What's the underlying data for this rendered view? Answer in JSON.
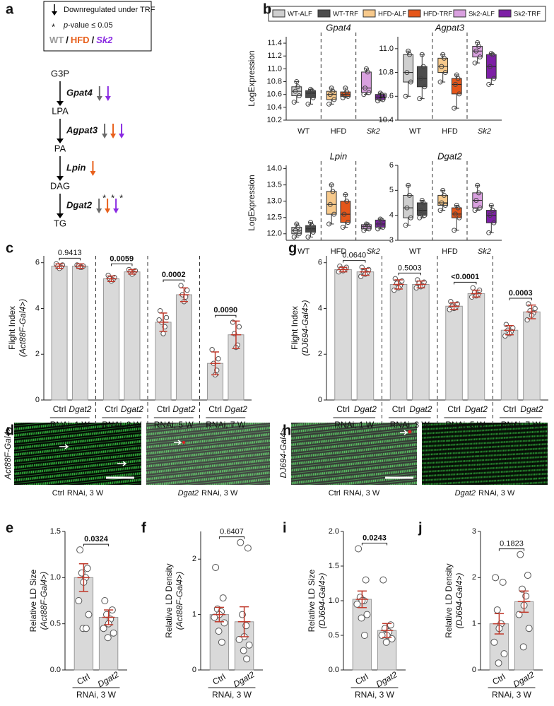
{
  "panel_labels": [
    "a",
    "b",
    "c",
    "d",
    "e",
    "f",
    "g",
    "h",
    "i",
    "j"
  ],
  "pathway": {
    "legend": {
      "arrow_text": "Downregulated under TRF",
      "star": "*",
      "p_symbol": "p",
      "p_text": "-value ≤ 0.05",
      "strains": [
        "WT",
        "/",
        "HFD",
        "/",
        "Sk2"
      ]
    },
    "steps": [
      {
        "from": "G3P",
        "enzyme": "Gpat4",
        "arrows": [
          {
            "color": "#6b6b6b"
          },
          {
            "color": "#8a2be2"
          }
        ]
      },
      {
        "from": "LPA",
        "enzyme": "Agpat3",
        "arrows": [
          {
            "color": "#6b6b6b"
          },
          {
            "color": "#e8601c"
          },
          {
            "color": "#8a2be2"
          }
        ]
      },
      {
        "from": "PA",
        "enzyme": "Lpin",
        "arrows": [
          {
            "color": "#e8601c"
          }
        ]
      },
      {
        "from": "DAG",
        "enzyme": "Dgat2",
        "arrows": [
          {
            "color": "#6b6b6b",
            "star": "*"
          },
          {
            "color": "#e8601c",
            "star": "*"
          },
          {
            "color": "#8a2be2",
            "star": "*"
          }
        ]
      }
    ],
    "end": "TG"
  },
  "box_legend": [
    {
      "name": "WT-ALF",
      "color": "#cfcfcf"
    },
    {
      "name": "WT-TRF",
      "color": "#4d4d4d"
    },
    {
      "name": "HFD-ALF",
      "color": "#f7c98b"
    },
    {
      "name": "HFD-TRF",
      "color": "#e5561a"
    },
    {
      "name": "Sk2-ALF",
      "color": "#d9a0df"
    },
    {
      "name": "Sk2-TRF",
      "color": "#7d1fa6"
    }
  ],
  "images": [
    {
      "side_label": "Act88F-Gal4>",
      "captions": [
        [
          "Ctrl",
          "RNAi, 3 W"
        ],
        [
          "Dgat2",
          "RNAi, 3 W"
        ]
      ]
    },
    {
      "side_label": "DJ694-Gal4>",
      "captions": [
        [
          "Ctrl",
          "RNAi, 3 W"
        ],
        [
          "Dgat2",
          "RNAi, 3 W"
        ]
      ]
    }
  ],
  "chart_data": [
    {
      "type": "box",
      "title": "Gpat4",
      "ylabel": "LogExpression",
      "groups": [
        "WT",
        "HFD",
        "Sk2"
      ],
      "ylim": [
        10.2,
        11.5
      ],
      "yticks": [
        10.2,
        10.4,
        10.6,
        10.8,
        {
          "value": 11,
          "label": "11.0"
        },
        11.2,
        11.4
      ],
      "boxes": [
        [
          10.48,
          10.58,
          10.65,
          10.72,
          10.8
        ],
        [
          10.45,
          10.55,
          10.62,
          10.66,
          10.68
        ],
        [
          10.45,
          10.52,
          10.6,
          10.65,
          10.7
        ],
        [
          10.55,
          10.57,
          10.6,
          10.64,
          10.7
        ],
        [
          10.6,
          10.63,
          10.7,
          10.95,
          11.0
        ],
        [
          10.5,
          10.52,
          10.56,
          10.6,
          10.62
        ]
      ]
    },
    {
      "type": "box",
      "title": "Agpat3",
      "groups": [
        "WT",
        "HFD",
        "Sk2"
      ],
      "ylim": [
        10.4,
        11.1
      ],
      "yticks": [
        10.4,
        10.6,
        10.8,
        {
          "value": 11,
          "label": "11.0"
        }
      ],
      "boxes": [
        [
          10.6,
          10.72,
          10.8,
          10.95,
          10.98
        ],
        [
          10.58,
          10.68,
          10.75,
          10.85,
          10.95
        ],
        [
          10.72,
          10.8,
          10.85,
          10.92,
          10.95
        ],
        [
          10.5,
          10.62,
          10.7,
          10.75,
          10.78
        ],
        [
          10.88,
          10.93,
          10.98,
          11.02,
          11.05
        ],
        [
          10.7,
          10.75,
          10.85,
          10.95,
          10.96
        ]
      ]
    },
    {
      "type": "box",
      "title": "Lpin",
      "ylabel": "LogExpression",
      "groups": [
        "WT",
        "HFD",
        "Sk2"
      ],
      "ylim": [
        11.8,
        14.1
      ],
      "yticks": [
        {
          "value": 12,
          "label": "12.0"
        },
        12.5,
        {
          "value": 13,
          "label": "13.0"
        },
        13.5,
        {
          "value": 14,
          "label": "14.0"
        }
      ],
      "boxes": [
        [
          11.9,
          12.0,
          12.1,
          12.2,
          12.3
        ],
        [
          11.9,
          12.05,
          12.15,
          12.25,
          12.35
        ],
        [
          12.3,
          12.6,
          12.9,
          13.3,
          13.5
        ],
        [
          12.2,
          12.35,
          12.6,
          13.0,
          13.2
        ],
        [
          12.1,
          12.15,
          12.22,
          12.28,
          12.3
        ],
        [
          12.15,
          12.2,
          12.3,
          12.42,
          12.45
        ]
      ]
    },
    {
      "type": "box",
      "title": "Dgat2",
      "groups": [
        "WT",
        "HFD",
        "Sk2"
      ],
      "ylim": [
        3,
        6
      ],
      "yticks": [
        3,
        4,
        5,
        6
      ],
      "boxes": [
        [
          3.6,
          3.9,
          4.3,
          4.8,
          5.2
        ],
        [
          3.9,
          4.0,
          4.2,
          4.5,
          4.6
        ],
        [
          4.2,
          4.4,
          4.5,
          4.8,
          5.0
        ],
        [
          3.4,
          3.9,
          4.05,
          4.3,
          4.4
        ],
        [
          4.2,
          4.3,
          4.6,
          4.9,
          5.2
        ],
        [
          3.3,
          3.7,
          4.0,
          4.2,
          4.4
        ]
      ]
    },
    {
      "type": "bar",
      "ylabel": [
        "Flight Index",
        "(Act88F-Gal4>)"
      ],
      "ylim": [
        0,
        6.3
      ],
      "yticks": [
        0,
        2,
        4,
        6
      ],
      "color": "#d9d9d9",
      "categories": [
        "Ctrl",
        "Dgat2",
        "Ctrl",
        "Dgat2",
        "Ctrl",
        "Dgat2",
        "Ctrl",
        "Dgat2"
      ],
      "group_labels": [
        "RNAi, 1 W",
        "RNAi, 3 W",
        "RNAi, 5 W",
        "RNAi, 7 W"
      ],
      "values": [
        5.85,
        5.85,
        5.3,
        5.6,
        3.4,
        4.6,
        1.6,
        2.85
      ],
      "errors": [
        0.1,
        0.1,
        0.12,
        0.1,
        0.4,
        0.3,
        0.5,
        0.6
      ],
      "points": [
        [
          5.95,
          5.9,
          5.85,
          5.8,
          5.75
        ],
        [
          5.9,
          5.85,
          5.85,
          5.8,
          5.8
        ],
        [
          5.45,
          5.35,
          5.3,
          5.25,
          5.2
        ],
        [
          5.7,
          5.65,
          5.6,
          5.55,
          5.5
        ],
        [
          3.9,
          3.6,
          3.4,
          3.2,
          2.9,
          3.5
        ],
        [
          5.0,
          4.8,
          4.6,
          4.5,
          4.3
        ],
        [
          2.2,
          1.8,
          1.6,
          1.3,
          1.1
        ],
        [
          3.4,
          3.2,
          2.9,
          2.4,
          2.3
        ]
      ],
      "pvalues": [
        "0.9413",
        "0.0059",
        "0.0002",
        "0.0090"
      ],
      "pvalue_bold": [
        false,
        true,
        true,
        true
      ]
    },
    {
      "type": "bar",
      "ylabel": [
        "Flight Index",
        "(DJ694-Gal4>)"
      ],
      "ylim": [
        0,
        6.3
      ],
      "yticks": [
        0,
        2,
        4,
        6
      ],
      "color": "#d9d9d9",
      "categories": [
        "Ctrl",
        "Dgat2",
        "Ctrl",
        "Dgat2",
        "Ctrl",
        "Dgat2",
        "Ctrl",
        "Dgat2"
      ],
      "group_labels": [
        "RNAi, 1 W",
        "RNAi, 3 W",
        "RNAi, 5 W",
        "RNAi, 7 W"
      ],
      "values": [
        5.7,
        5.6,
        5.05,
        5.05,
        4.1,
        4.65,
        3.05,
        3.85
      ],
      "errors": [
        0.1,
        0.15,
        0.2,
        0.15,
        0.15,
        0.15,
        0.2,
        0.3
      ],
      "points": [
        [
          5.85,
          5.8,
          5.75,
          5.7,
          5.65,
          5.6
        ],
        [
          5.8,
          5.7,
          5.6,
          5.55,
          5.5,
          5.4
        ],
        [
          5.3,
          5.2,
          5.1,
          5.0,
          4.9,
          4.8
        ],
        [
          5.25,
          5.15,
          5.1,
          5.0,
          4.95,
          4.9
        ],
        [
          4.3,
          4.2,
          4.1,
          4.05,
          4.0,
          3.95
        ],
        [
          4.9,
          4.8,
          4.7,
          4.6,
          4.55,
          4.5
        ],
        [
          3.3,
          3.15,
          3.05,
          3.0,
          2.9,
          2.8
        ],
        [
          4.2,
          4.0,
          3.9,
          3.8,
          3.7,
          3.5
        ]
      ],
      "pvalues": [
        "0.0640",
        "0.5003",
        "<0.0001",
        "0.0003"
      ],
      "pvalue_bold": [
        false,
        false,
        true,
        true
      ]
    },
    {
      "type": "bar",
      "ylabel": [
        "Relative LD Size",
        "(Act88F-Gal4>)"
      ],
      "ylim": [
        0,
        1.5
      ],
      "yticks": [
        {
          "value": 0,
          "label": "0.0"
        },
        0.5,
        {
          "value": 1,
          "label": "1.0"
        },
        1.5
      ],
      "color": "#d9d9d9",
      "categories": [
        "Ctrl",
        "Dgat2"
      ],
      "group_labels": [
        "RNAi, 3 W"
      ],
      "values": [
        1.0,
        0.57
      ],
      "errors": [
        0.15,
        0.08
      ],
      "points": [
        [
          1.3,
          1.1,
          1.05,
          1.0,
          0.95,
          0.75,
          0.6,
          0.45,
          0.45
        ],
        [
          0.75,
          0.65,
          0.6,
          0.55,
          0.5,
          0.45,
          0.4,
          0.35
        ]
      ],
      "pvalues": [
        "0.0324"
      ],
      "pvalue_bold": [
        true
      ]
    },
    {
      "type": "bar",
      "ylabel": [
        "Relative LD Density",
        "(Act88F-Gal4>)"
      ],
      "ylim": [
        0,
        2.5
      ],
      "yticks": [
        0,
        1,
        2
      ],
      "color": "#d9d9d9",
      "categories": [
        "Ctrl",
        "Dgat2"
      ],
      "group_labels": [
        "RNAi, 3 W"
      ],
      "values": [
        1.0,
        0.87
      ],
      "errors": [
        0.13,
        0.27
      ],
      "points": [
        [
          1.85,
          1.3,
          1.1,
          1.05,
          1.0,
          0.95,
          0.85,
          0.7,
          0.5
        ],
        [
          2.3,
          2.2,
          1.0,
          0.8,
          0.6,
          0.55,
          0.45,
          0.35,
          0.2
        ]
      ],
      "pvalues": [
        "0.6407"
      ],
      "pvalue_bold": [
        false
      ]
    },
    {
      "type": "bar",
      "ylabel": [
        "Relative LD Size",
        "(DJ694-Gal4>)"
      ],
      "ylim": [
        0,
        2
      ],
      "yticks": [
        {
          "value": 0,
          "label": "0.0"
        },
        0.5,
        {
          "value": 1,
          "label": "1.0"
        },
        1.5,
        {
          "value": 2,
          "label": "2.0"
        }
      ],
      "color": "#d9d9d9",
      "categories": [
        "Ctrl",
        "Dgat2"
      ],
      "group_labels": [
        "RNAi, 3 W"
      ],
      "values": [
        1.02,
        0.57
      ],
      "errors": [
        0.12,
        0.1
      ],
      "points": [
        [
          1.75,
          1.3,
          1.05,
          1.0,
          1.0,
          0.95,
          0.8,
          0.75,
          0.5
        ],
        [
          1.3,
          0.65,
          0.6,
          0.55,
          0.5,
          0.5,
          0.45,
          0.4
        ]
      ],
      "pvalues": [
        "0.0243"
      ],
      "pvalue_bold": [
        true
      ]
    },
    {
      "type": "bar",
      "ylabel": [
        "Relative LD Density",
        "(DJ694-Gal4>)"
      ],
      "ylim": [
        0,
        3
      ],
      "yticks": [
        0,
        1,
        2,
        3
      ],
      "color": "#d9d9d9",
      "categories": [
        "Ctrl",
        "Dgat2"
      ],
      "group_labels": [
        "RNAi, 3 W"
      ],
      "values": [
        1.0,
        1.48
      ],
      "errors": [
        0.22,
        0.23
      ],
      "points": [
        [
          2.0,
          1.9,
          1.3,
          1.0,
          0.9,
          0.6,
          0.35,
          0.15
        ],
        [
          2.5,
          2.05,
          1.75,
          1.6,
          1.4,
          1.2,
          0.9,
          0.5
        ]
      ],
      "pvalues": [
        "0.1823"
      ],
      "pvalue_bold": [
        false
      ]
    }
  ]
}
